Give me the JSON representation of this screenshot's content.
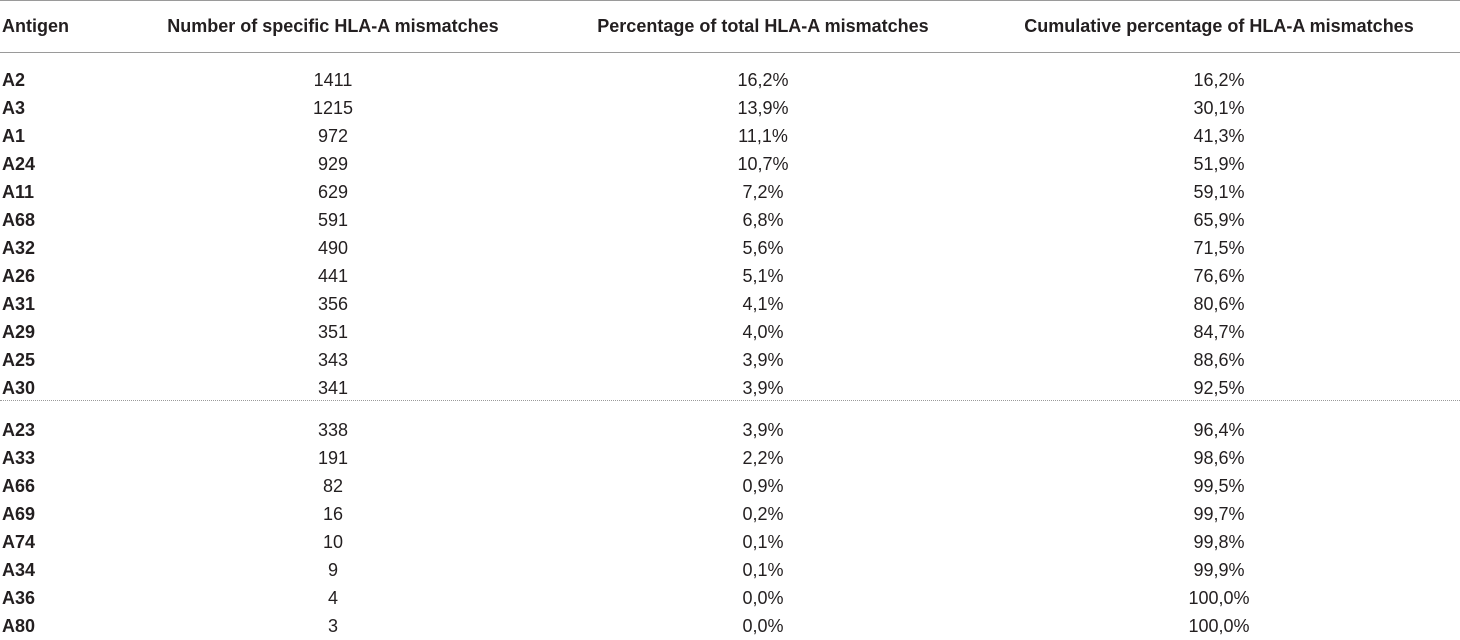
{
  "table": {
    "headers": [
      "Antigen",
      "Number of specific HLA-A mismatches",
      "Percentage of total HLA-A mismatches",
      "Cumulative percentage of HLA-A mismatches"
    ],
    "group1": [
      {
        "antigen": "A2",
        "number": "1411",
        "percentage": "16,2%",
        "cumulative": "16,2%"
      },
      {
        "antigen": "A3",
        "number": "1215",
        "percentage": "13,9%",
        "cumulative": "30,1%"
      },
      {
        "antigen": "A1",
        "number": "972",
        "percentage": "11,1%",
        "cumulative": "41,3%"
      },
      {
        "antigen": "A24",
        "number": "929",
        "percentage": "10,7%",
        "cumulative": "51,9%"
      },
      {
        "antigen": "A11",
        "number": "629",
        "percentage": "7,2%",
        "cumulative": "59,1%"
      },
      {
        "antigen": "A68",
        "number": "591",
        "percentage": "6,8%",
        "cumulative": "65,9%"
      },
      {
        "antigen": "A32",
        "number": "490",
        "percentage": "5,6%",
        "cumulative": "71,5%"
      },
      {
        "antigen": "A26",
        "number": "441",
        "percentage": "5,1%",
        "cumulative": "76,6%"
      },
      {
        "antigen": "A31",
        "number": "356",
        "percentage": "4,1%",
        "cumulative": "80,6%"
      },
      {
        "antigen": "A29",
        "number": "351",
        "percentage": "4,0%",
        "cumulative": "84,7%"
      },
      {
        "antigen": "A25",
        "number": "343",
        "percentage": "3,9%",
        "cumulative": "88,6%"
      },
      {
        "antigen": "A30",
        "number": "341",
        "percentage": "3,9%",
        "cumulative": "92,5%"
      }
    ],
    "group2": [
      {
        "antigen": "A23",
        "number": "338",
        "percentage": "3,9%",
        "cumulative": "96,4%"
      },
      {
        "antigen": "A33",
        "number": "191",
        "percentage": "2,2%",
        "cumulative": "98,6%"
      },
      {
        "antigen": "A66",
        "number": "82",
        "percentage": "0,9%",
        "cumulative": "99,5%"
      },
      {
        "antigen": "A69",
        "number": "16",
        "percentage": "0,2%",
        "cumulative": "99,7%"
      },
      {
        "antigen": "A74",
        "number": "10",
        "percentage": "0,1%",
        "cumulative": "99,8%"
      },
      {
        "antigen": "A34",
        "number": "9",
        "percentage": "0,1%",
        "cumulative": "99,9%"
      },
      {
        "antigen": "A36",
        "number": "4",
        "percentage": "0,0%",
        "cumulative": "100,0%"
      },
      {
        "antigen": "A80",
        "number": "3",
        "percentage": "0,0%",
        "cumulative": "100,0%"
      }
    ]
  }
}
